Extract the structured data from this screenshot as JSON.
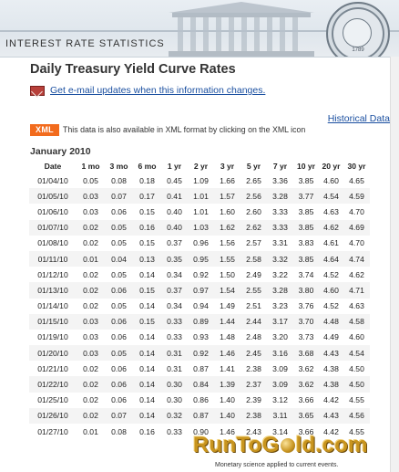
{
  "header": {
    "banner_title": "INTEREST RATE STATISTICS",
    "seal_year": "1789",
    "accent": "#dfe6ec"
  },
  "page": {
    "title": "Daily Treasury Yield Curve Rates",
    "email_link": "Get e-mail updates when this information changes.",
    "historical_link": "Historical Data",
    "xml_badge": "XML",
    "xml_note": "This data is also available in XML format by clicking on the XML icon",
    "month": "January 2010",
    "link_color": "#1a4fa0",
    "xml_color": "#f26b1d"
  },
  "table": {
    "headers": [
      "Date",
      "1 mo",
      "3 mo",
      "6 mo",
      "1 yr",
      "2 yr",
      "3 yr",
      "5 yr",
      "7 yr",
      "10 yr",
      "20 yr",
      "30 yr"
    ],
    "rows": [
      [
        "01/04/10",
        "0.05",
        "0.08",
        "0.18",
        "0.45",
        "1.09",
        "1.66",
        "2.65",
        "3.36",
        "3.85",
        "4.60",
        "4.65"
      ],
      [
        "01/05/10",
        "0.03",
        "0.07",
        "0.17",
        "0.41",
        "1.01",
        "1.57",
        "2.56",
        "3.28",
        "3.77",
        "4.54",
        "4.59"
      ],
      [
        "01/06/10",
        "0.03",
        "0.06",
        "0.15",
        "0.40",
        "1.01",
        "1.60",
        "2.60",
        "3.33",
        "3.85",
        "4.63",
        "4.70"
      ],
      [
        "01/07/10",
        "0.02",
        "0.05",
        "0.16",
        "0.40",
        "1.03",
        "1.62",
        "2.62",
        "3.33",
        "3.85",
        "4.62",
        "4.69"
      ],
      [
        "01/08/10",
        "0.02",
        "0.05",
        "0.15",
        "0.37",
        "0.96",
        "1.56",
        "2.57",
        "3.31",
        "3.83",
        "4.61",
        "4.70"
      ],
      [
        "01/11/10",
        "0.01",
        "0.04",
        "0.13",
        "0.35",
        "0.95",
        "1.55",
        "2.58",
        "3.32",
        "3.85",
        "4.64",
        "4.74"
      ],
      [
        "01/12/10",
        "0.02",
        "0.05",
        "0.14",
        "0.34",
        "0.92",
        "1.50",
        "2.49",
        "3.22",
        "3.74",
        "4.52",
        "4.62"
      ],
      [
        "01/13/10",
        "0.02",
        "0.06",
        "0.15",
        "0.37",
        "0.97",
        "1.54",
        "2.55",
        "3.28",
        "3.80",
        "4.60",
        "4.71"
      ],
      [
        "01/14/10",
        "0.02",
        "0.05",
        "0.14",
        "0.34",
        "0.94",
        "1.49",
        "2.51",
        "3.23",
        "3.76",
        "4.52",
        "4.63"
      ],
      [
        "01/15/10",
        "0.03",
        "0.06",
        "0.15",
        "0.33",
        "0.89",
        "1.44",
        "2.44",
        "3.17",
        "3.70",
        "4.48",
        "4.58"
      ],
      [
        "01/19/10",
        "0.03",
        "0.06",
        "0.14",
        "0.33",
        "0.93",
        "1.48",
        "2.48",
        "3.20",
        "3.73",
        "4.49",
        "4.60"
      ],
      [
        "01/20/10",
        "0.03",
        "0.05",
        "0.14",
        "0.31",
        "0.92",
        "1.46",
        "2.45",
        "3.16",
        "3.68",
        "4.43",
        "4.54"
      ],
      [
        "01/21/10",
        "0.02",
        "0.06",
        "0.14",
        "0.31",
        "0.87",
        "1.41",
        "2.38",
        "3.09",
        "3.62",
        "4.38",
        "4.50"
      ],
      [
        "01/22/10",
        "0.02",
        "0.06",
        "0.14",
        "0.30",
        "0.84",
        "1.39",
        "2.37",
        "3.09",
        "3.62",
        "4.38",
        "4.50"
      ],
      [
        "01/25/10",
        "0.02",
        "0.06",
        "0.14",
        "0.30",
        "0.86",
        "1.40",
        "2.39",
        "3.12",
        "3.66",
        "4.42",
        "4.55"
      ],
      [
        "01/26/10",
        "0.02",
        "0.07",
        "0.14",
        "0.32",
        "0.87",
        "1.40",
        "2.38",
        "3.11",
        "3.65",
        "4.43",
        "4.56"
      ],
      [
        "01/27/10",
        "0.01",
        "0.08",
        "0.16",
        "0.33",
        "0.90",
        "1.46",
        "2.43",
        "3.14",
        "3.66",
        "4.42",
        "4.55"
      ]
    ]
  },
  "footer": {
    "logo_prefix": "RunToG",
    "logo_suffix": "ld.com",
    "tagline": "Monetary science applied to current events.",
    "logo_color": "#c8941e"
  }
}
